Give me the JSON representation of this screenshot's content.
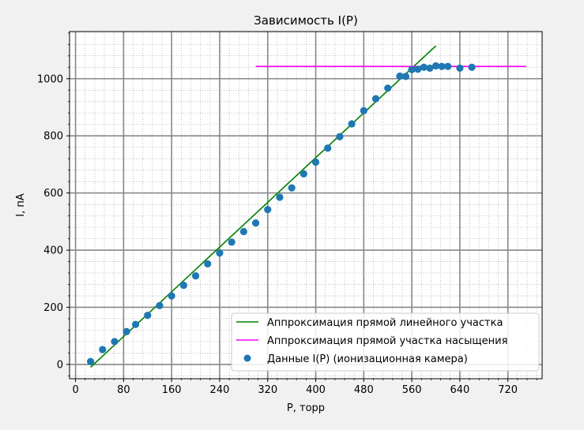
{
  "chart_data": {
    "type": "scatter",
    "title": "Зависимость I(P)",
    "xlabel": "P, торр",
    "ylabel": "I, пА",
    "xlim": [
      -10,
      777
    ],
    "ylim": [
      -50,
      1165
    ],
    "x_ticks": [
      0,
      80,
      160,
      240,
      320,
      400,
      480,
      560,
      640,
      720
    ],
    "y_ticks": [
      0,
      200,
      400,
      600,
      800,
      1000
    ],
    "x_tick_labels": [
      "0",
      "80",
      "160",
      "240",
      "320",
      "400",
      "480",
      "560",
      "640",
      "720"
    ],
    "y_tick_labels": [
      "0",
      "200",
      "400",
      "600",
      "800",
      "1000"
    ],
    "grid": "major and minor",
    "legend_position": "lower-right",
    "series": [
      {
        "name": "Аппроксимация прямой линейного участка",
        "type": "line",
        "color": "#008000",
        "x": [
          25,
          600
        ],
        "y": [
          -10,
          1115
        ]
      },
      {
        "name": "Аппроксимация прямой участка насыщения",
        "type": "line",
        "color": "#ff00ff",
        "x": [
          300,
          750
        ],
        "y": [
          1043,
          1043
        ]
      },
      {
        "name": "Данные I(P) (ионизационная камера)",
        "type": "scatter",
        "color": "#1f77b4",
        "x": [
          25,
          45,
          65,
          85,
          100,
          120,
          140,
          160,
          180,
          200,
          220,
          240,
          260,
          280,
          300,
          320,
          340,
          360,
          380,
          400,
          420,
          440,
          460,
          480,
          500,
          520,
          540,
          550,
          560,
          570,
          580,
          590,
          600,
          610,
          620,
          640,
          660
        ],
        "y": [
          10,
          52,
          80,
          115,
          140,
          172,
          206,
          240,
          277,
          310,
          352,
          390,
          428,
          465,
          495,
          542,
          585,
          618,
          667,
          708,
          757,
          797,
          842,
          888,
          930,
          967,
          1009,
          1008,
          1032,
          1033,
          1040,
          1037,
          1045,
          1043,
          1043,
          1037,
          1040
        ]
      }
    ]
  }
}
